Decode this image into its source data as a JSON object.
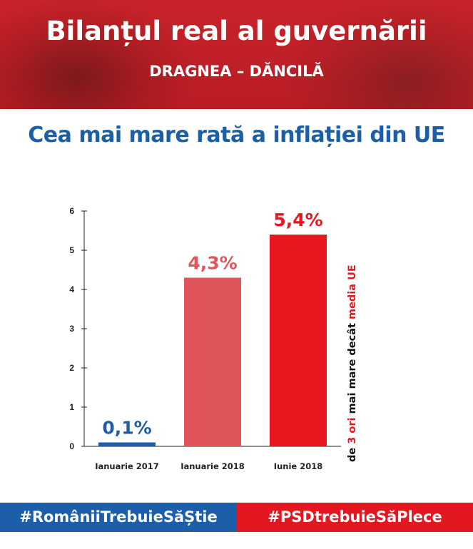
{
  "header": {
    "title": "Bilanțul real al guvernării",
    "subtitle": "DRAGNEA – DĂNCILĂ"
  },
  "chart_data": {
    "type": "bar",
    "title": "Cea mai mare rată a inflației din UE",
    "categories": [
      "Ianuarie 2017",
      "Ianuarie 2018",
      "Iunie 2018"
    ],
    "values": [
      0.1,
      4.3,
      5.4
    ],
    "data_labels": [
      "0,1%",
      "4,3%",
      "5,4%"
    ],
    "bar_colors": [
      "#1c5ea8",
      "#e05559",
      "#e8161e"
    ],
    "label_colors": [
      "#1c5ea8",
      "#e05559",
      "#e8161e"
    ],
    "ylim": [
      0,
      6
    ],
    "yticks": [
      0,
      1,
      2,
      3,
      4,
      5,
      6
    ],
    "grid": false,
    "annotation": {
      "part1": "de ",
      "part2": "3 ori",
      "part3": " mai mare decât ",
      "part4": "media UE"
    }
  },
  "footer": {
    "left_tag": "#RomâniiTrebuieSăȘtie",
    "right_tag": "#PSDtrebuieSăPlece"
  },
  "colors": {
    "header_red": "#c8232a",
    "title_blue": "#1d5fa5",
    "footer_blue": "#1c5ea8",
    "footer_red": "#e3171f"
  }
}
